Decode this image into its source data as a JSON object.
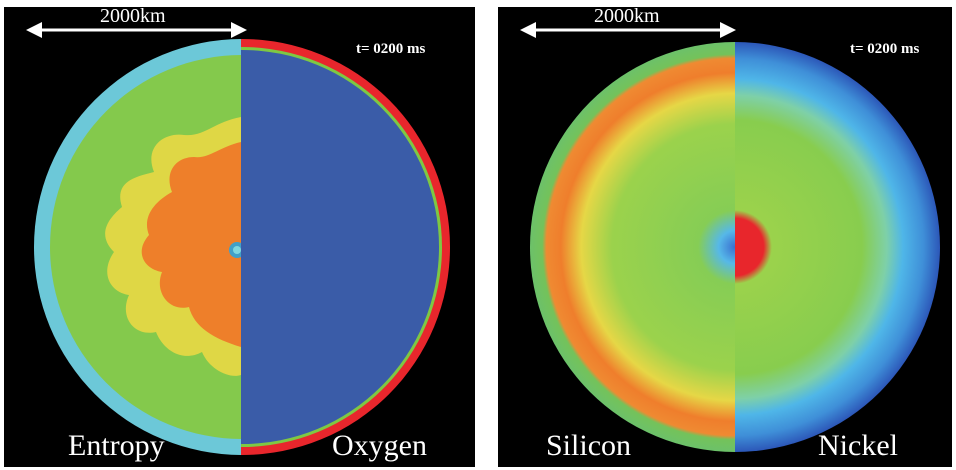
{
  "panels": [
    {
      "scale_label": "2000km",
      "time_label": "t= 0200 ms",
      "left_field": "Entropy",
      "right_field": "Oxygen"
    },
    {
      "scale_label": "2000km",
      "time_label": "t= 0200 ms",
      "left_field": "Silicon",
      "right_field": "Nickel"
    }
  ],
  "colors": {
    "background": "#000000",
    "cyan_shell": "#6cc8d8",
    "green": "#86cc48",
    "orange": "#ee7d2a",
    "yellow": "#e6de46",
    "blue_core": "#3a5ca8",
    "red_rim": "#e8262c",
    "dark_blue_rim": "#2c57b8",
    "light_blue": "#4fb6e8"
  }
}
